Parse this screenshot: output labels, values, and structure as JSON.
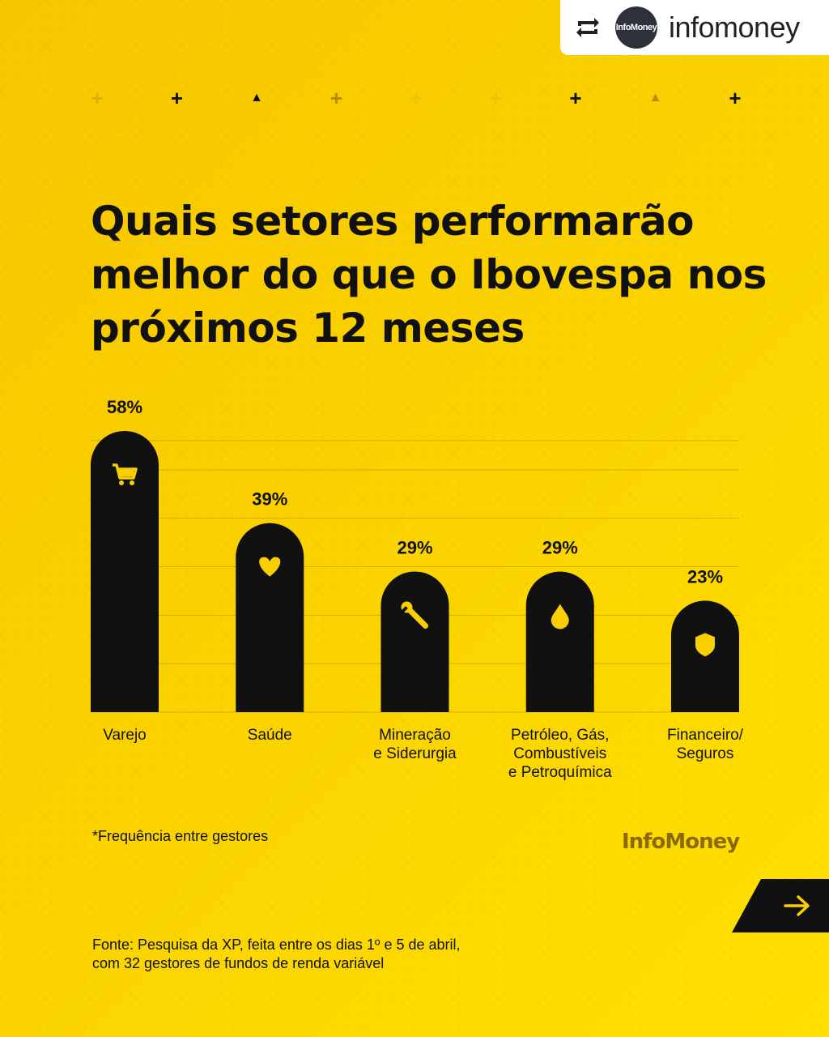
{
  "repost": {
    "handle": "infomoney",
    "avatar_text": "InfoMoney",
    "icon": "repost-icon"
  },
  "decorations": [
    {
      "glyph": "+",
      "color": "#d9b300"
    },
    {
      "glyph": "+",
      "color": "#111111"
    },
    {
      "glyph": "▲",
      "color": "#111111"
    },
    {
      "glyph": "+",
      "color": "#b08e00"
    },
    {
      "glyph": "+",
      "color": "#e9c400"
    },
    {
      "glyph": "+",
      "color": "#e9c400"
    },
    {
      "glyph": "+",
      "color": "#111111"
    },
    {
      "glyph": "▲",
      "color": "#b08e00"
    },
    {
      "glyph": "+",
      "color": "#111111"
    }
  ],
  "title": "Quais setores performarão melhor do que o Ibovespa nos próximos 12 meses",
  "chart_data": {
    "type": "bar",
    "categories": [
      [
        "Varejo"
      ],
      [
        "Saúde"
      ],
      [
        "Mineração",
        "e Siderurgia"
      ],
      [
        "Petróleo, Gás,",
        "Combustíveis",
        "e Petroquímica"
      ],
      [
        "Financeiro/",
        "Seguros"
      ]
    ],
    "values": [
      58,
      39,
      29,
      29,
      23
    ],
    "value_labels": [
      "58%",
      "39%",
      "29%",
      "29%",
      "23%"
    ],
    "icons": [
      "cart-icon",
      "heart-icon",
      "wrench-icon",
      "drop-icon",
      "shield-icon"
    ],
    "ylim": [
      0,
      60
    ],
    "grid": true,
    "colors": {
      "bar": "#111111",
      "icon": "#f9cf00",
      "grid": "#d6ad00"
    }
  },
  "footnote": "*Frequência entre gestores",
  "brand": "InfoMoney",
  "source_lines": [
    "Fonte: Pesquisa da XP, feita entre os dias 1º e 5 de abril,",
    "com 32 gestores de fundos de renda variável"
  ]
}
